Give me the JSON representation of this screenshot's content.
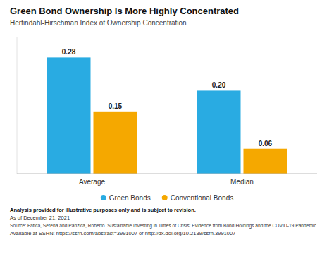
{
  "chart_data": {
    "type": "bar",
    "title": "Green Bond Ownership Is More Highly Concentrated",
    "subtitle": "Herfindahl-Hirschman Index of Ownership Concentration",
    "categories": [
      "Average",
      "Median"
    ],
    "series": [
      {
        "name": "Green Bonds",
        "color": "#29ABE2",
        "values": [
          0.28,
          0.2
        ],
        "value_labels": [
          "0.28",
          "0.20"
        ]
      },
      {
        "name": "Conventional Bonds",
        "color": "#F5A800",
        "values": [
          0.15,
          0.06
        ],
        "value_labels": [
          "0.15",
          "0.06"
        ]
      }
    ],
    "ylim": [
      0,
      0.33
    ],
    "data_labels": true,
    "tick_labels": "x",
    "grid": false,
    "legend": "bottom",
    "annotations": [
      "Analysis provided for illustrative purposes only and is subject to revision.",
      "As of December 21, 2021",
      "Source: Fatica, Serena and Panzica, Roberto. Sustainable Investing in Times of Crisis: Evidence from Bond Holdings and the COVID-19 Pandemic.",
      "Available at SSRN: https://ssrn.com/abstract=3991007 or http://dx.doi.org/10.2139/ssrn.3991007"
    ]
  }
}
